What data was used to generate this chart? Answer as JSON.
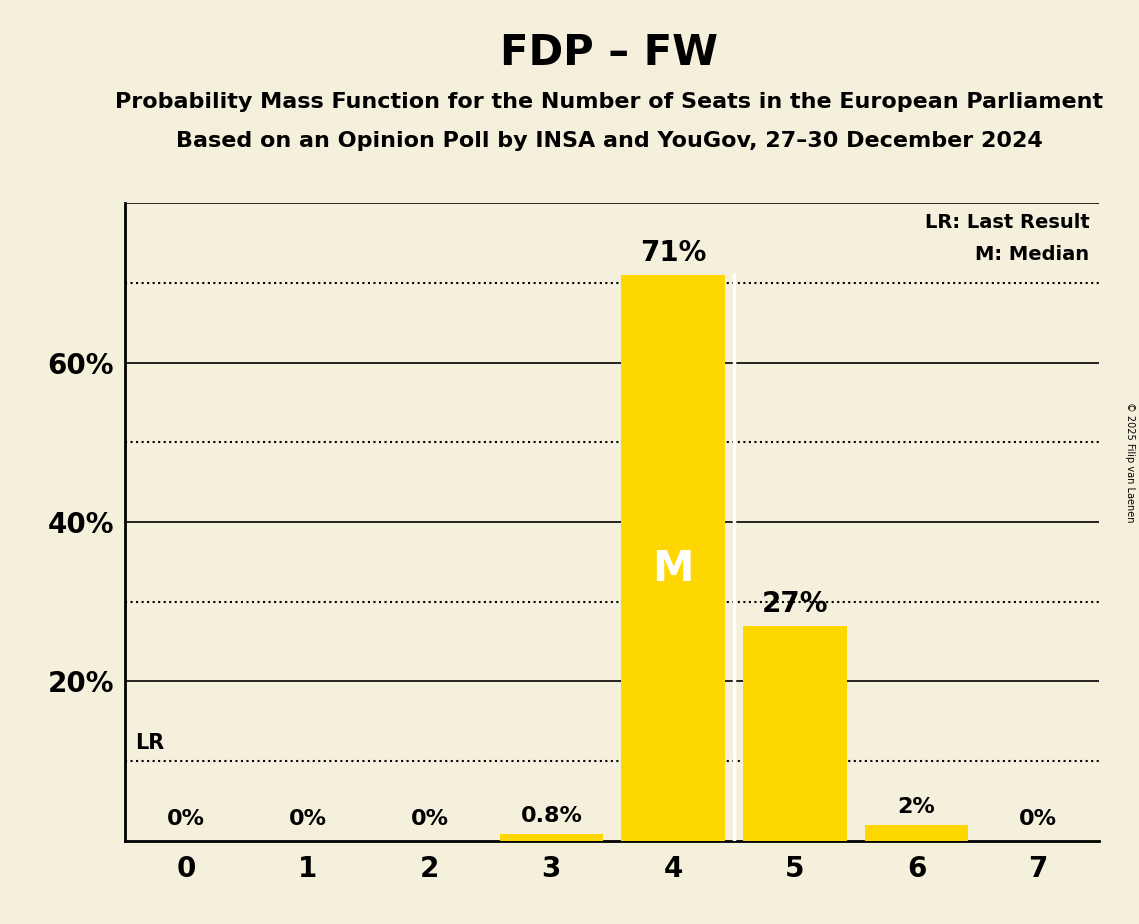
{
  "title": "FDP – FW",
  "subtitle1": "Probability Mass Function for the Number of Seats in the European Parliament",
  "subtitle2": "Based on an Opinion Poll by INSA and YouGov, 27–30 December 2024",
  "copyright": "© 2025 Filip van Laenen",
  "categories": [
    0,
    1,
    2,
    3,
    4,
    5,
    6,
    7
  ],
  "values": [
    0.0,
    0.0,
    0.0,
    0.8,
    71.0,
    27.0,
    2.0,
    0.0
  ],
  "bar_color": "#FFD700",
  "background_color": "#F5F0DC",
  "lr_value": 10.0,
  "median_seat": 4,
  "solid_lines": [
    20,
    40,
    60,
    80
  ],
  "dotted_lines": [
    10,
    30,
    50,
    70
  ],
  "ytick_positions": [
    20,
    40,
    60
  ],
  "ytick_labels": [
    "20%",
    "40%",
    "60%"
  ],
  "ylim": [
    0,
    80
  ],
  "xlim": [
    -0.5,
    7.5
  ],
  "bar_labels": [
    "0%",
    "0%",
    "0%",
    "0.8%",
    "71%",
    "27%",
    "2%",
    "0%"
  ],
  "title_fontsize": 30,
  "subtitle_fontsize": 16,
  "bar_width": 0.85,
  "lr_label": "LR: Last Result",
  "median_label": "M: Median",
  "median_text_color": "#FFFFFF",
  "median_text": "M",
  "legend_fontsize": 14,
  "tick_fontsize": 20,
  "ytick_fontsize": 20,
  "bar_label_fontsize_large": 20,
  "bar_label_fontsize_small": 16
}
